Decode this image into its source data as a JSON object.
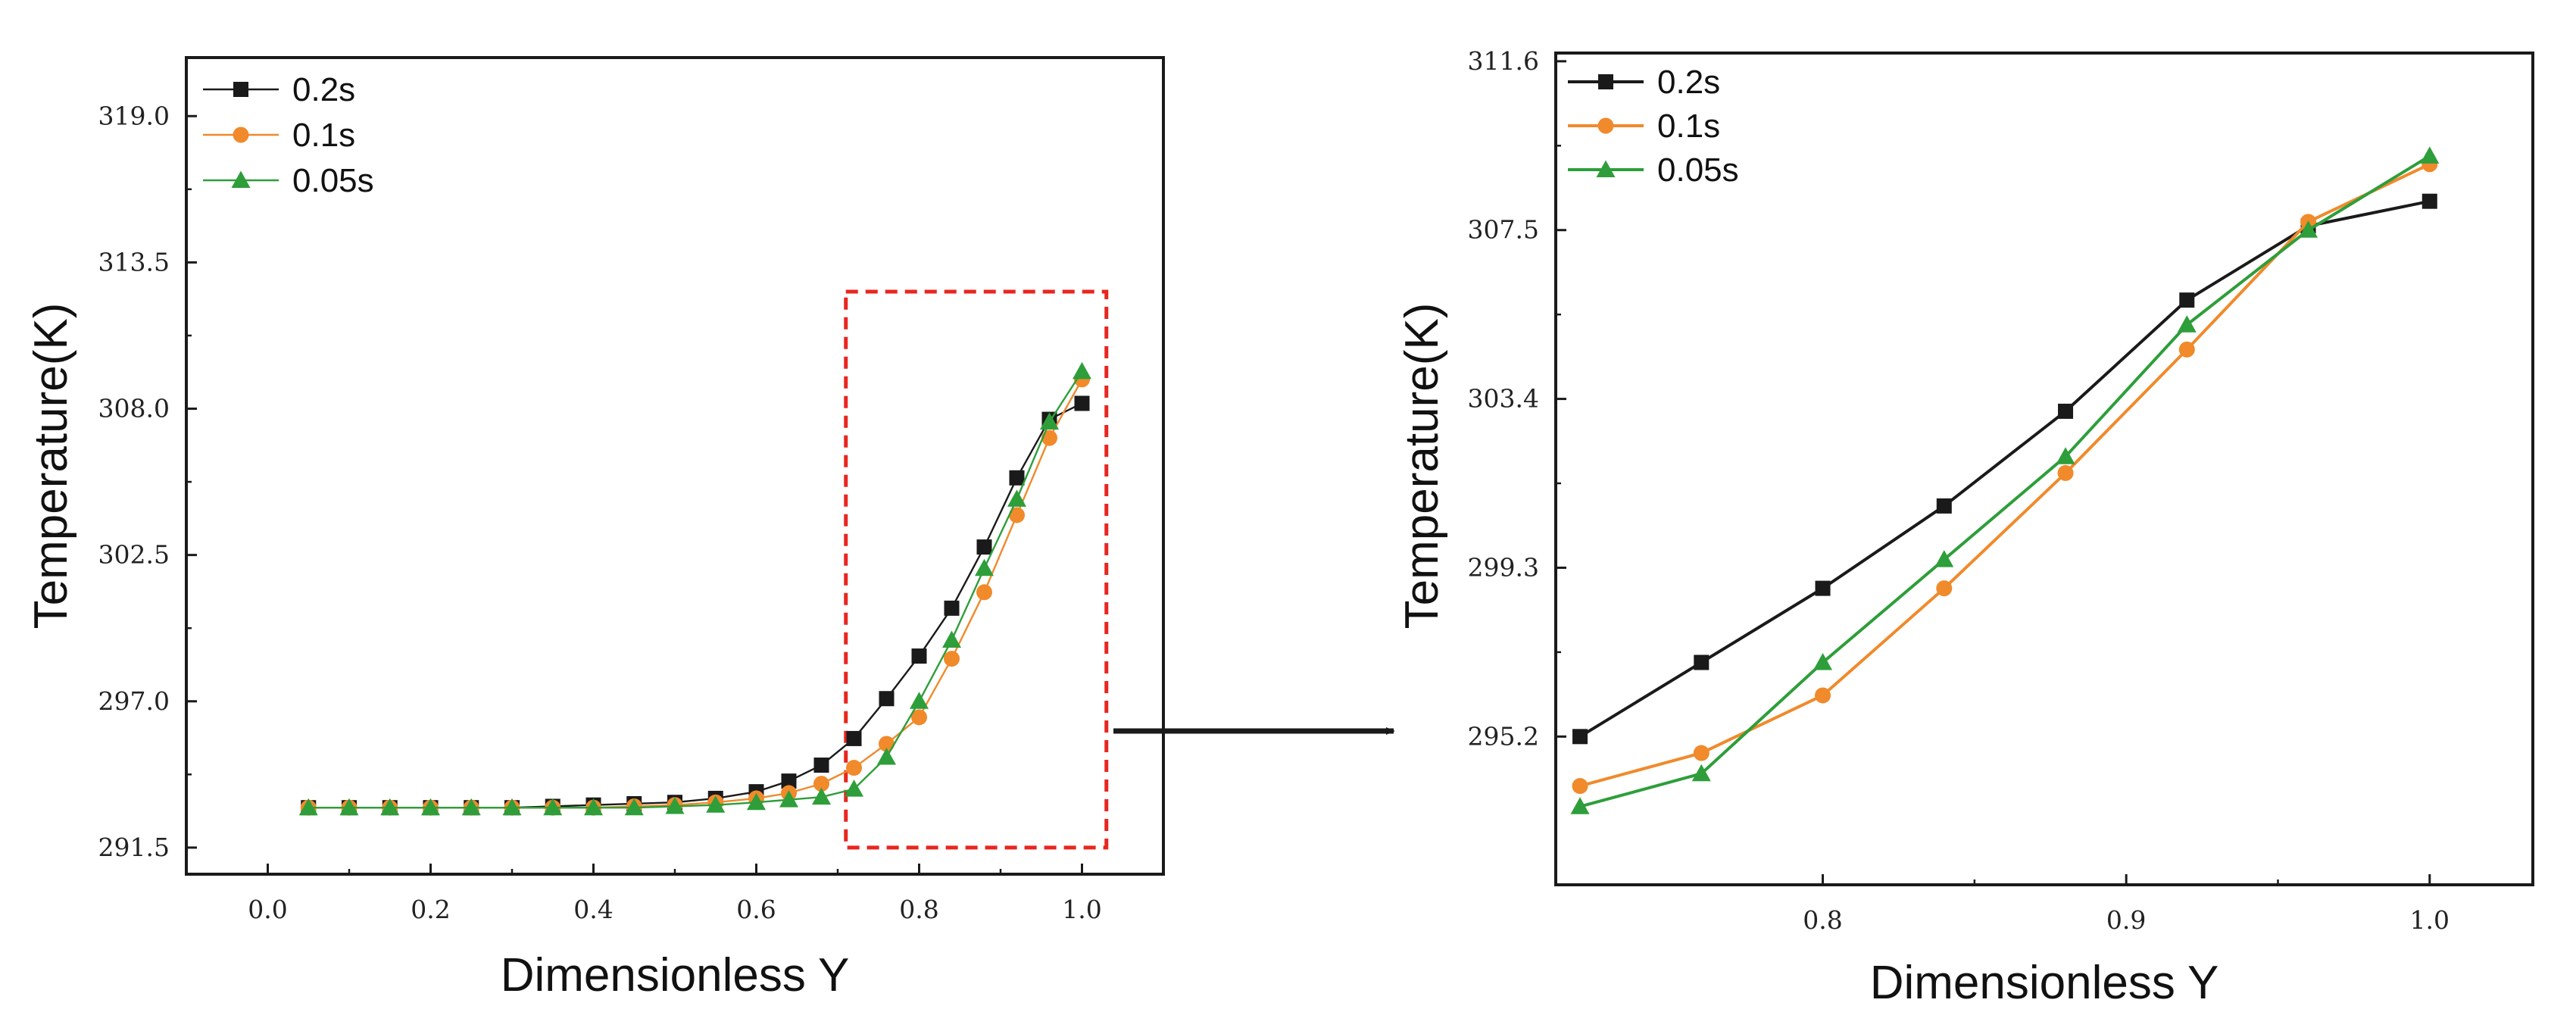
{
  "chart_data": [
    {
      "type": "line",
      "panel": "left",
      "xlabel": "Dimensionless Y",
      "ylabel": "Temperature(K)",
      "xlim": [
        -0.1,
        1.1
      ],
      "ylim": [
        290.5,
        321.2
      ],
      "xticks": [
        0.0,
        0.2,
        0.4,
        0.6,
        0.8,
        1.0
      ],
      "xtick_labels": [
        "0.0",
        "0.2",
        "0.4",
        "0.6",
        "0.8",
        "1.0"
      ],
      "yticks": [
        291.5,
        297.0,
        302.5,
        308.0,
        313.5,
        319.0
      ],
      "ytick_labels": [
        "291.5",
        "297.0",
        "302.5",
        "308.0",
        "313.5",
        "319.0"
      ],
      "legend_position": "top-left",
      "highlight_box": {
        "x": [
          0.71,
          1.03
        ],
        "y": [
          291.5,
          312.4
        ],
        "color": "#e8261f",
        "style": "dashed"
      },
      "series": [
        {
          "name": "0.2s",
          "color": "#1a1a1a",
          "marker": "square",
          "x": [
            0.05,
            0.1,
            0.15,
            0.2,
            0.25,
            0.3,
            0.35,
            0.4,
            0.45,
            0.5,
            0.55,
            0.6,
            0.64,
            0.68,
            0.72,
            0.76,
            0.8,
            0.84,
            0.88,
            0.92,
            0.96,
            1.0
          ],
          "values": [
            293.0,
            293.0,
            293.0,
            293.0,
            293.0,
            293.0,
            293.05,
            293.1,
            293.15,
            293.2,
            293.35,
            293.6,
            294.0,
            294.6,
            295.6,
            297.1,
            298.7,
            300.5,
            302.8,
            305.4,
            307.6,
            308.2
          ]
        },
        {
          "name": "0.1s",
          "color": "#f08a2b",
          "marker": "circle",
          "x": [
            0.05,
            0.1,
            0.15,
            0.2,
            0.25,
            0.3,
            0.35,
            0.4,
            0.45,
            0.5,
            0.55,
            0.6,
            0.64,
            0.68,
            0.72,
            0.76,
            0.8,
            0.84,
            0.88,
            0.92,
            0.96,
            1.0
          ],
          "values": [
            293.0,
            293.0,
            293.0,
            293.0,
            293.0,
            293.0,
            293.0,
            293.0,
            293.05,
            293.1,
            293.2,
            293.35,
            293.55,
            293.9,
            294.5,
            295.4,
            296.4,
            298.6,
            301.1,
            304.0,
            306.9,
            309.1
          ]
        },
        {
          "name": "0.05s",
          "color": "#2e9e3a",
          "marker": "triangle",
          "x": [
            0.05,
            0.1,
            0.15,
            0.2,
            0.25,
            0.3,
            0.35,
            0.4,
            0.45,
            0.5,
            0.55,
            0.6,
            0.64,
            0.68,
            0.72,
            0.76,
            0.8,
            0.84,
            0.88,
            0.92,
            0.96,
            1.0
          ],
          "values": [
            293.0,
            293.0,
            293.0,
            293.0,
            293.0,
            293.0,
            293.0,
            293.0,
            293.0,
            293.05,
            293.1,
            293.2,
            293.3,
            293.4,
            293.7,
            294.9,
            297.0,
            299.3,
            302.0,
            304.6,
            307.5,
            309.4
          ]
        }
      ]
    },
    {
      "type": "line",
      "panel": "right",
      "xlabel": "Dimensionless Y",
      "ylabel": "Temperature(K)",
      "xlim": [
        0.712,
        1.034
      ],
      "ylim": [
        291.6,
        311.8
      ],
      "xticks": [
        0.8,
        0.9,
        1.0
      ],
      "xtick_labels": [
        "0.8",
        "0.9",
        "1.0"
      ],
      "yticks": [
        295.2,
        299.3,
        303.4,
        307.5,
        311.6
      ],
      "ytick_labels": [
        "295.2",
        "299.3",
        "303.4",
        "307.5",
        "311.6"
      ],
      "legend_position": "top-left",
      "series": [
        {
          "name": "0.2s",
          "color": "#1a1a1a",
          "marker": "square",
          "x": [
            0.72,
            0.76,
            0.8,
            0.84,
            0.88,
            0.92,
            0.96,
            1.0
          ],
          "values": [
            295.2,
            297.0,
            298.8,
            300.8,
            303.1,
            305.8,
            307.6,
            308.2
          ]
        },
        {
          "name": "0.1s",
          "color": "#f08a2b",
          "marker": "circle",
          "x": [
            0.72,
            0.76,
            0.8,
            0.84,
            0.88,
            0.92,
            0.96,
            1.0
          ],
          "values": [
            294.0,
            294.8,
            296.2,
            298.8,
            301.6,
            304.6,
            307.7,
            309.1
          ]
        },
        {
          "name": "0.05s",
          "color": "#2e9e3a",
          "marker": "triangle",
          "x": [
            0.72,
            0.76,
            0.8,
            0.84,
            0.88,
            0.92,
            0.96,
            1.0
          ],
          "values": [
            293.5,
            294.3,
            297.0,
            299.5,
            302.0,
            305.2,
            307.5,
            309.3
          ]
        }
      ]
    }
  ],
  "connector_arrow": {
    "color": "#1a1a1a"
  }
}
